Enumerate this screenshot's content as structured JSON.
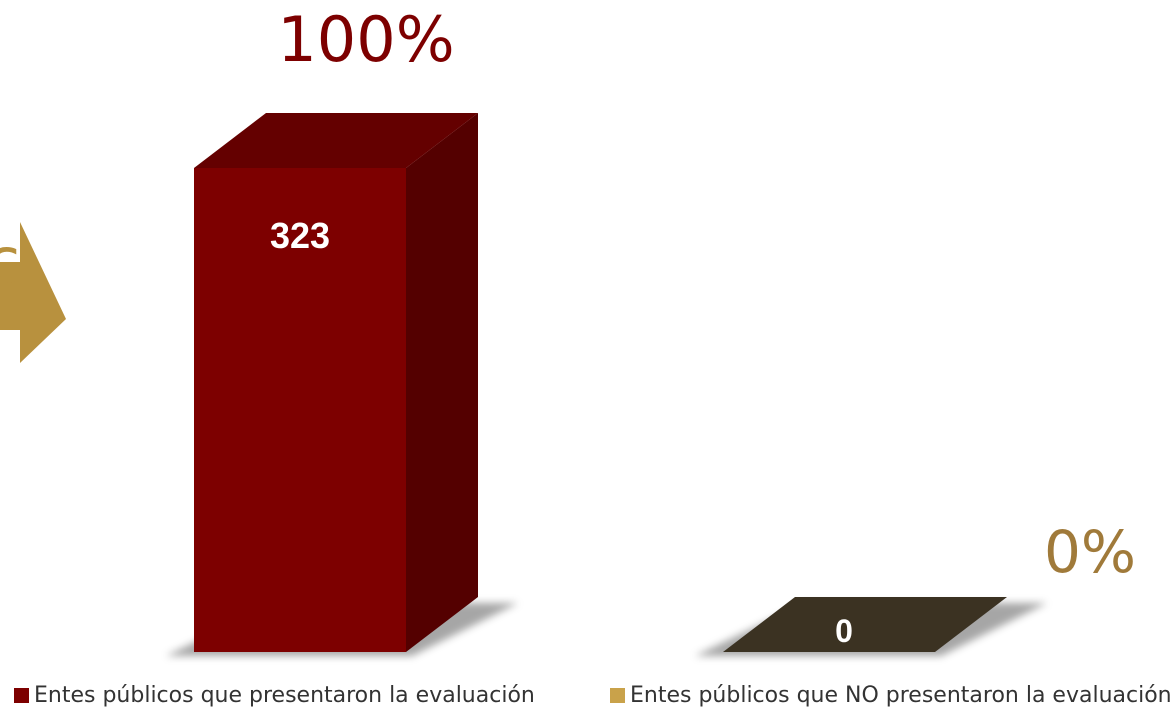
{
  "chart_data": {
    "type": "bar",
    "categories": [
      "Entes públicos que presentaron la evaluación",
      "Entes públicos que NO presentaron la evaluación"
    ],
    "values": [
      323,
      0
    ],
    "percent_labels": [
      "100%",
      "0%"
    ],
    "value_labels": [
      "323",
      "0"
    ],
    "ylim": [
      0,
      323
    ],
    "grid": false,
    "legend_placement": "bottom",
    "colors": {
      "series1_front": "#7d0000",
      "series1_side": "#540000",
      "series1_top": "#640000",
      "series2_front": "#3b3222",
      "series2_label_color": "#a07a3a",
      "series1_label_color": "#7d0000",
      "legend_swatch_1": "#7d0000",
      "legend_swatch_2": "#c9a24a",
      "arrow": "#b8913e"
    }
  },
  "decor": {
    "arrow_icon": "arrow-right-icon",
    "partial_glyph": "c"
  }
}
